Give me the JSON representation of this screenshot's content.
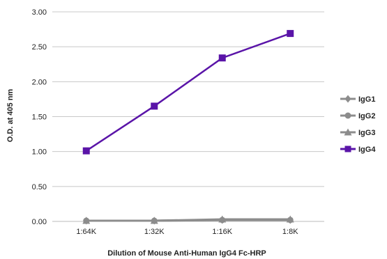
{
  "chart_data": {
    "type": "line",
    "title": "",
    "xlabel": "Dilution of Mouse Anti-Human IgG4 Fc-HRP",
    "ylabel": "O.D. at 405 nm",
    "categories": [
      "1:64K",
      "1:32K",
      "1:16K",
      "1:8K"
    ],
    "ylim": [
      0,
      3
    ],
    "yticks": [
      "0.00",
      "0.50",
      "1.00",
      "1.50",
      "2.00",
      "2.50",
      "3.00"
    ],
    "grid": "horizontal",
    "legend_position": "right",
    "series": [
      {
        "name": "IgG1",
        "values": [
          0.01,
          0.01,
          0.02,
          0.02
        ],
        "color": "#8c8c8c",
        "marker": "diamond"
      },
      {
        "name": "IgG2",
        "values": [
          0.01,
          0.01,
          0.02,
          0.02
        ],
        "color": "#8c8c8c",
        "marker": "circle"
      },
      {
        "name": "IgG3",
        "values": [
          0.01,
          0.01,
          0.03,
          0.03
        ],
        "color": "#8c8c8c",
        "marker": "triangle"
      },
      {
        "name": "IgG4",
        "values": [
          1.01,
          1.65,
          2.34,
          2.69
        ],
        "color": "#5a14a8",
        "marker": "square"
      }
    ]
  }
}
